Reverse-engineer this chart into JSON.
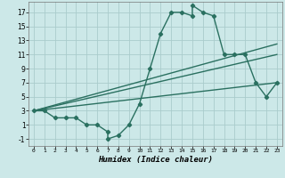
{
  "title": "",
  "xlabel": "Humidex (Indice chaleur)",
  "bg_color": "#cce8e8",
  "grid_color": "#aacccc",
  "line_color": "#2a7060",
  "xlim": [
    -0.5,
    23.5
  ],
  "ylim": [
    -2.0,
    18.5
  ],
  "xticks": [
    0,
    1,
    2,
    3,
    4,
    5,
    6,
    7,
    8,
    9,
    10,
    11,
    12,
    13,
    14,
    15,
    16,
    17,
    18,
    19,
    20,
    21,
    22,
    23
  ],
  "yticks": [
    -1,
    1,
    3,
    5,
    7,
    9,
    11,
    13,
    15,
    17
  ],
  "main_x": [
    0,
    1,
    2,
    3,
    4,
    5,
    6,
    7,
    7,
    8,
    9,
    10,
    11,
    12,
    13,
    14,
    15,
    15,
    16,
    17,
    18,
    19,
    20,
    21,
    22,
    23
  ],
  "main_y": [
    3,
    3,
    2,
    2,
    2,
    1,
    1,
    0,
    -1,
    -0.5,
    1,
    4,
    9,
    14,
    17,
    17,
    16.5,
    18,
    17,
    16.5,
    11,
    11,
    11,
    7,
    5,
    7
  ],
  "line2_x": [
    0,
    23
  ],
  "line2_y": [
    3,
    11
  ],
  "line3_x": [
    0,
    23
  ],
  "line3_y": [
    3,
    7
  ],
  "line4_x": [
    0,
    23
  ],
  "line4_y": [
    3,
    12.5
  ],
  "marker": "D",
  "markersize": 2.2,
  "linewidth": 1.0
}
